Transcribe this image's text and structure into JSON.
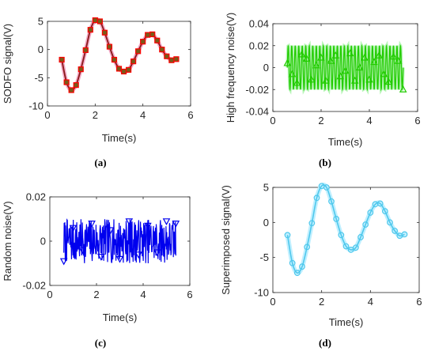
{
  "chart_data": [
    {
      "panel": "a",
      "type": "line",
      "caption": "(a)",
      "xlabel": "Time(s)",
      "ylabel": "SODFO signal(V)",
      "xlim": [
        0,
        6
      ],
      "ylim": [
        -10,
        5
      ],
      "xticks": [
        0,
        2,
        4,
        6
      ],
      "yticks": [
        -10,
        -5,
        0,
        5
      ],
      "xtick_labels": [
        "0",
        "2",
        "4",
        "6"
      ],
      "ytick_labels": [
        "-10",
        "-5",
        "0",
        "5"
      ],
      "grid": false,
      "line_color": "#8b1a1a",
      "marker_color": "#ff0000",
      "marker": "square",
      "x": [
        0.6,
        0.8,
        1.0,
        1.2,
        1.4,
        1.6,
        1.8,
        2.0,
        2.2,
        2.4,
        2.6,
        2.8,
        3.0,
        3.2,
        3.4,
        3.6,
        3.8,
        4.0,
        4.2,
        4.4,
        4.6,
        4.8,
        5.0,
        5.2,
        5.4
      ],
      "y": [
        -1.8,
        -5.8,
        -7.2,
        -6.3,
        -3.5,
        -0.1,
        3.5,
        5.2,
        5.0,
        3.0,
        0.5,
        -1.8,
        -3.4,
        -3.9,
        -3.6,
        -2.1,
        -0.3,
        1.4,
        2.6,
        2.7,
        1.6,
        0.0,
        -1.2,
        -1.9,
        -1.7
      ]
    },
    {
      "panel": "b",
      "type": "line",
      "caption": "(b)",
      "xlabel": "Time(s)",
      "ylabel": "High frequency noise(V)",
      "xlim": [
        0,
        6
      ],
      "ylim": [
        -0.04,
        0.04
      ],
      "xticks": [
        0,
        2,
        4,
        6
      ],
      "yticks": [
        -0.04,
        -0.02,
        0,
        0.02,
        0.04
      ],
      "xtick_labels": [
        "0",
        "2",
        "4",
        "6"
      ],
      "ytick_labels": [
        "-0.04",
        "-0.02",
        "0",
        "0.02",
        "0.04"
      ],
      "grid": false,
      "line_color": "#22cc00",
      "marker_color": "#22cc00",
      "marker": "triangle",
      "signal": {
        "x_start": 0.6,
        "x_end": 5.4,
        "amplitude": 0.02,
        "cycles": 33
      },
      "marker_x": [
        0.6,
        0.8,
        1.0,
        1.2,
        1.4,
        1.6,
        1.8,
        2.0,
        2.2,
        2.4,
        2.6,
        2.8,
        3.0,
        3.2,
        3.4,
        3.6,
        3.8,
        4.0,
        4.2,
        4.4,
        4.6,
        4.8,
        5.0,
        5.2,
        5.4
      ],
      "marker_y": [
        0.004,
        -0.006,
        -0.014,
        0.012,
        0.008,
        -0.011,
        0.002,
        0.009,
        -0.012,
        0.006,
        0.011,
        -0.008,
        -0.003,
        0.013,
        -0.012,
        0.0,
        0.009,
        -0.011,
        0.005,
        0.011,
        -0.006,
        -0.013,
        0.01,
        0.006,
        -0.02
      ]
    },
    {
      "panel": "c",
      "type": "line",
      "caption": "(c)",
      "xlabel": "Time(s)",
      "ylabel": "Random noise(V)",
      "xlim": [
        0,
        6
      ],
      "ylim": [
        -0.02,
        0.02
      ],
      "xticks": [
        0,
        2,
        4,
        6
      ],
      "yticks": [
        -0.02,
        0,
        0.02
      ],
      "xtick_labels": [
        "0",
        "2",
        "4",
        "6"
      ],
      "ytick_labels": [
        "-0.02",
        "0",
        "0.02"
      ],
      "grid": false,
      "line_color": "#0000ee",
      "marker_color": "#0000ee",
      "marker": "triangle-down",
      "signal": {
        "x_start": 0.6,
        "x_end": 5.4,
        "amplitude": 0.01,
        "points": 320,
        "seed": 7
      },
      "marker_x": [
        0.6,
        1.0,
        1.4,
        1.8,
        2.2,
        2.6,
        3.0,
        3.4,
        3.8,
        4.2,
        4.6,
        5.0,
        5.4
      ],
      "marker_y": [
        -0.009,
        0.006,
        -0.004,
        0.008,
        -0.007,
        0.005,
        -0.008,
        0.009,
        -0.006,
        0.007,
        -0.005,
        0.009,
        0.008
      ]
    },
    {
      "panel": "d",
      "type": "line",
      "caption": "(d)",
      "xlabel": "Time(s)",
      "ylabel": "Superimposed signal(V)",
      "xlim": [
        0,
        6
      ],
      "ylim": [
        -10,
        5
      ],
      "xticks": [
        0,
        2,
        4,
        6
      ],
      "yticks": [
        -10,
        -5,
        0,
        5
      ],
      "xtick_labels": [
        "0",
        "2",
        "4",
        "6"
      ],
      "ytick_labels": [
        "-10",
        "-5",
        "0",
        "5"
      ],
      "grid": false,
      "line_color": "#4fc8ec",
      "marker_color": "#4fc8ec",
      "marker": "circle",
      "x": [
        0.6,
        0.8,
        1.0,
        1.2,
        1.4,
        1.6,
        1.8,
        2.0,
        2.2,
        2.4,
        2.6,
        2.8,
        3.0,
        3.2,
        3.4,
        3.6,
        3.8,
        4.0,
        4.2,
        4.4,
        4.6,
        4.8,
        5.0,
        5.2,
        5.4
      ],
      "y": [
        -1.8,
        -5.8,
        -7.2,
        -6.3,
        -3.5,
        -0.1,
        3.5,
        5.2,
        5.0,
        3.0,
        0.5,
        -1.8,
        -3.4,
        -3.9,
        -3.6,
        -2.1,
        -0.3,
        1.4,
        2.6,
        2.7,
        1.6,
        0.0,
        -1.2,
        -1.9,
        -1.7
      ]
    }
  ]
}
